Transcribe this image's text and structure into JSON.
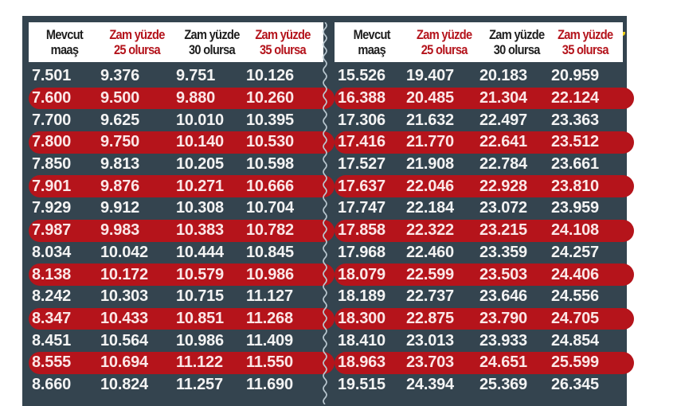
{
  "colors": {
    "panel_bg": "#34444f",
    "header_bg": "#ffffff",
    "highlight_row": "#b5141b",
    "header_red_text": "#b4141c",
    "header_dark_text": "#1e1e1e",
    "value_text": "#f3f3f3",
    "accent_dot": "#f2d21a"
  },
  "table": {
    "headers": [
      {
        "line1": "Mevcut",
        "line2": "maaş",
        "style": "dark"
      },
      {
        "line1": "Zam yüzde",
        "line2": "25 olursa",
        "style": "red"
      },
      {
        "line1": "Zam yüzde",
        "line2": "30 olursa",
        "style": "dark"
      },
      {
        "line1": "Zam yüzde",
        "line2": "35 olursa",
        "style": "red"
      }
    ],
    "left_rows": [
      [
        "7.501",
        "9.376",
        "9.751",
        "10.126"
      ],
      [
        "7.600",
        "9.500",
        "9.880",
        "10.260"
      ],
      [
        "7.700",
        "9.625",
        "10.010",
        "10.395"
      ],
      [
        "7.800",
        "9.750",
        "10.140",
        "10.530"
      ],
      [
        "7.850",
        "9.813",
        "10.205",
        "10.598"
      ],
      [
        "7.901",
        "9.876",
        "10.271",
        "10.666"
      ],
      [
        "7.929",
        "9.912",
        "10.308",
        "10.704"
      ],
      [
        "7.987",
        "9.983",
        "10.383",
        "10.782"
      ],
      [
        "8.034",
        "10.042",
        "10.444",
        "10.845"
      ],
      [
        "8.138",
        "10.172",
        "10.579",
        "10.986"
      ],
      [
        "8.242",
        "10.303",
        "10.715",
        "11.127"
      ],
      [
        "8.347",
        "10.433",
        "10.851",
        "11.268"
      ],
      [
        "8.451",
        "10.564",
        "10.986",
        "11.409"
      ],
      [
        "8.555",
        "10.694",
        "11.122",
        "11.550"
      ],
      [
        "8.660",
        "10.824",
        "11.257",
        "11.690"
      ]
    ],
    "right_rows": [
      [
        "15.526",
        "19.407",
        "20.183",
        "20.959"
      ],
      [
        "16.388",
        "20.485",
        "21.304",
        "22.124"
      ],
      [
        "17.306",
        "21.632",
        "22.497",
        "23.363"
      ],
      [
        "17.416",
        "21.770",
        "22.641",
        "23.512"
      ],
      [
        "17.527",
        "21.908",
        "22.784",
        "23.661"
      ],
      [
        "17.637",
        "22.046",
        "22.928",
        "23.810"
      ],
      [
        "17.747",
        "22.184",
        "23.072",
        "23.959"
      ],
      [
        "17.858",
        "22.322",
        "23.215",
        "24.108"
      ],
      [
        "17.968",
        "22.460",
        "23.359",
        "24.257"
      ],
      [
        "18.079",
        "22.599",
        "23.503",
        "24.406"
      ],
      [
        "18.189",
        "22.737",
        "23.646",
        "24.556"
      ],
      [
        "18.300",
        "22.875",
        "23.790",
        "24.705"
      ],
      [
        "18.410",
        "23.013",
        "23.933",
        "24.854"
      ],
      [
        "18.963",
        "23.703",
        "24.651",
        "25.599"
      ],
      [
        "19.515",
        "24.394",
        "25.369",
        "26.345"
      ]
    ]
  }
}
